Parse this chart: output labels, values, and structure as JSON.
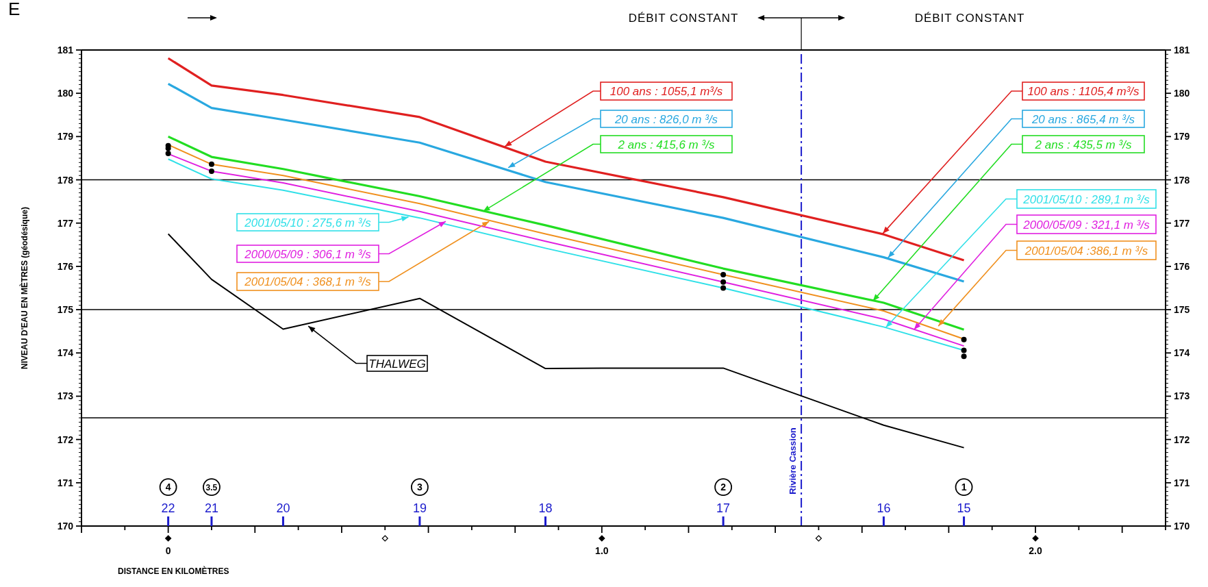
{
  "chart_data": {
    "type": "line",
    "ylabel": "NIVEAU D'EAU EN MÈTRES (géodésique)",
    "xlabel": "DISTANCE EN KILOMÈTRES",
    "x": [
      0,
      0.1,
      0.265,
      0.58,
      0.87,
      1.28,
      1.65,
      1.835
    ],
    "series": [
      {
        "name": "100 ans : 1055,1 m³/s",
        "color": "#e02020",
        "values": [
          180.81,
          180.18,
          179.96,
          179.45,
          178.42,
          177.6,
          176.74,
          176.14
        ]
      },
      {
        "name": "20 ans : 826,0 m ³/s",
        "color": "#29a8e0",
        "values": [
          180.22,
          179.66,
          179.39,
          178.86,
          177.95,
          177.12,
          176.21,
          175.65
        ]
      },
      {
        "name": "2 ans : 415,6 m ³/s",
        "color": "#22dd22",
        "values": [
          179.0,
          178.53,
          178.25,
          177.62,
          176.95,
          175.95,
          175.16,
          174.54
        ]
      },
      {
        "name": "2001/05/04 : 368,1 m ³/s",
        "color": "#f0901e",
        "values": [
          178.81,
          178.36,
          178.1,
          177.45,
          176.75,
          175.81,
          174.97,
          174.32
        ]
      },
      {
        "name": "2000/05/09 : 306,1 m ³/s",
        "color": "#e020e0",
        "values": [
          178.6,
          178.2,
          177.93,
          177.27,
          176.58,
          175.64,
          174.78,
          174.16
        ]
      },
      {
        "name": "2001/05/10 : 275,6 m ³/s",
        "color": "#30e0e8",
        "values": [
          178.48,
          178.02,
          177.76,
          177.12,
          176.42,
          175.5,
          174.6,
          174.06
        ]
      },
      {
        "name": "THALWEG",
        "color": "#000000",
        "x": [
          0,
          0.1,
          0.265,
          0.58,
          0.87,
          1.0,
          1.28,
          1.65,
          1.835
        ],
        "values": [
          176.75,
          175.7,
          174.55,
          175.26,
          173.64,
          173.65,
          173.65,
          172.33,
          171.81
        ]
      },
      {
        "type": "scatter",
        "color": "#000000",
        "marker": "circle",
        "x": [
          0,
          0,
          0,
          0.1,
          0.1,
          1.28,
          1.28,
          1.28,
          1.835,
          1.835,
          1.835
        ],
        "values": [
          178.79,
          178.73,
          178.61,
          178.36,
          178.2,
          175.81,
          175.64,
          175.5,
          174.31,
          174.06,
          173.92
        ]
      }
    ],
    "xlim": [
      -0.2,
      2.3
    ],
    "xticks": [
      {
        "value": -0.2,
        "label": null
      },
      {
        "value": -0.1,
        "label": null
      },
      0,
      {
        "value": 0.1,
        "label": null
      },
      {
        "value": 0.2,
        "label": null
      },
      {
        "value": 0.3,
        "label": null
      },
      {
        "value": 0.4,
        "label": null
      },
      {
        "value": 0.5,
        "label": null
      },
      {
        "value": 0.6,
        "label": null
      },
      {
        "value": 0.7,
        "label": null
      },
      {
        "value": 0.8,
        "label": null
      },
      {
        "value": 0.9,
        "label": null
      },
      {
        "value": 1.0,
        "label": "1.0"
      },
      {
        "value": 1.1,
        "label": null
      },
      {
        "value": 1.2,
        "label": null
      },
      {
        "value": 1.3,
        "label": null
      },
      {
        "value": 1.4,
        "label": null
      },
      {
        "value": 1.5,
        "label": null
      },
      {
        "value": 1.6,
        "label": null
      },
      {
        "value": 1.7,
        "label": null
      },
      {
        "value": 1.8,
        "label": null
      },
      {
        "value": 1.9,
        "label": null
      },
      {
        "value": 2.0,
        "label": "2.0"
      },
      {
        "value": 2.1,
        "label": null
      },
      {
        "value": 2.2,
        "label": null
      },
      {
        "value": 2.3,
        "label": null
      }
    ],
    "ylim": [
      170,
      181
    ],
    "yticks": [
      170,
      171,
      172,
      173,
      174,
      175,
      176,
      177,
      178,
      179,
      180,
      181
    ],
    "y2lim": [
      170,
      181
    ],
    "y2ticks": [
      170,
      171,
      172,
      173,
      174,
      175,
      176,
      177,
      178,
      179,
      180,
      181
    ],
    "grid": false,
    "legend": "left",
    "line_style": "solid",
    "marker": "none",
    "ref_lines": [
      {
        "axis": "y",
        "value": 178,
        "color": "#000000"
      },
      {
        "axis": "y",
        "value": 175,
        "color": "#000000"
      },
      {
        "axis": "y",
        "value": 172.5,
        "color": "#000000"
      },
      {
        "axis": "x",
        "value": 1.46,
        "label": "Rivière Cassion",
        "color": "#1a1acc",
        "line_style": "dashed"
      }
    ],
    "annotations": [
      "E",
      "DÉBIT CONSTANT",
      "DÉBIT CONSTANT",
      "22",
      "21",
      "20",
      "19",
      "18",
      "17",
      "16",
      "15",
      {
        "text": "100 ans : 1105,4 m³/s",
        "x": 1.648,
        "y": 176.76
      },
      {
        "text": "20 ans : 865,4 m ³/s",
        "x": 1.66,
        "y": 176.2
      },
      {
        "text": "2 ans : 435,5 m ³/s",
        "x": 1.625,
        "y": 175.2
      },
      {
        "text": "2001/05/10 : 289,1 m ³/s",
        "x": 1.655,
        "y": 174.59
      },
      {
        "text": "2000/05/09 : 321,1 m ³/s",
        "x": 1.72,
        "y": 174.54
      },
      {
        "text": "2001/05/04 :386,1 m ³/s",
        "x": 1.776,
        "y": 174.62
      },
      {
        "text": "4",
        "x": 0,
        "y": 170.9
      },
      {
        "text": "3.5",
        "x": 0.1,
        "y": 170.9
      },
      {
        "text": "3",
        "x": 0.58,
        "y": 170.9
      },
      {
        "text": "2",
        "x": 1.28,
        "y": 170.9
      },
      {
        "text": "1",
        "x": 1.835,
        "y": 170.9
      }
    ]
  }
}
